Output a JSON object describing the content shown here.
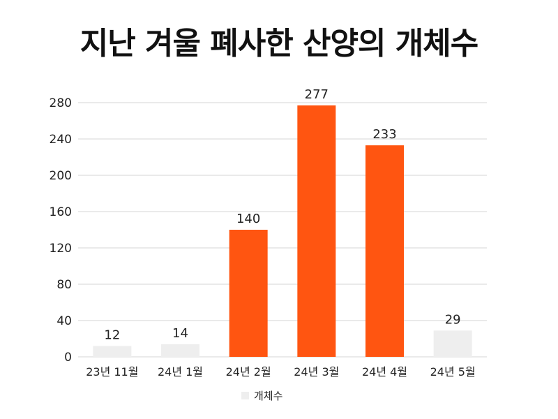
{
  "chart_data": {
    "type": "bar",
    "title": "지난 겨울 폐사한 산양의 개체수",
    "categories": [
      "23년 11월",
      "24년 1월",
      "24년 2월",
      "24년 3월",
      "24년 4월",
      "24년 5월"
    ],
    "series": [
      {
        "name": "개체수",
        "values": [
          12,
          14,
          140,
          277,
          233,
          29
        ]
      }
    ],
    "bar_colors": [
      "#eeeeee",
      "#eeeeee",
      "#ff5511",
      "#ff5511",
      "#ff5511",
      "#eeeeee"
    ],
    "legend_color": "#eeeeee",
    "y_ticks": [
      0,
      40,
      80,
      120,
      160,
      200,
      240,
      280
    ],
    "ylim": [
      0,
      280
    ],
    "grid": true,
    "data_labels": true,
    "legend_position": "bottom"
  }
}
